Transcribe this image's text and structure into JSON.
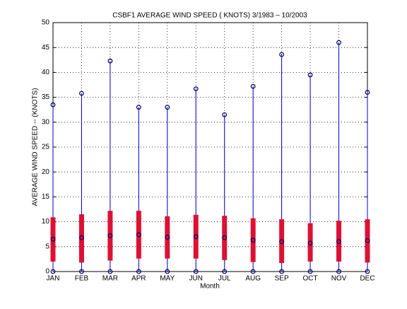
{
  "chart_data": {
    "type": "range",
    "title": "CSBF1  AVERAGE WIND SPEED ( KNOTS) 3/1983 – 10/2003",
    "xlabel": "Month",
    "ylabel": "AVERAGE WIND SPEED -- (KNOTS)",
    "categories": [
      "JAN",
      "FEB",
      "MAR",
      "APR",
      "MAY",
      "JUN",
      "JUL",
      "AUG",
      "SEP",
      "OCT",
      "NOV",
      "DEC"
    ],
    "lows": [
      0,
      0,
      0,
      0,
      0,
      0,
      0,
      0,
      0,
      0,
      0,
      0
    ],
    "highs": [
      33.5,
      35.8,
      42.3,
      33,
      33,
      36.7,
      31.5,
      37.2,
      43.6,
      39.5,
      46,
      36
    ],
    "box_lows": [
      2.0,
      1.8,
      2.2,
      2.6,
      2.6,
      2.6,
      2.3,
      1.9,
      1.7,
      2.0,
      2.0,
      1.8
    ],
    "box_highs": [
      10.9,
      11.5,
      12.2,
      12.2,
      11.1,
      11.4,
      11.2,
      10.7,
      10.5,
      9.7,
      10.2,
      10.5
    ],
    "means": [
      6.5,
      6.8,
      7.2,
      7.4,
      6.9,
      7.0,
      6.8,
      6.3,
      6.0,
      5.7,
      6.0,
      6.2
    ],
    "line_color": "#0000cc",
    "box_color": "#dd1133",
    "marker_color": "#000066",
    "ylim": [
      0,
      50
    ],
    "yticks": [
      0,
      5,
      10,
      15,
      20,
      25,
      30,
      35,
      40,
      45,
      50
    ],
    "grid": true
  }
}
